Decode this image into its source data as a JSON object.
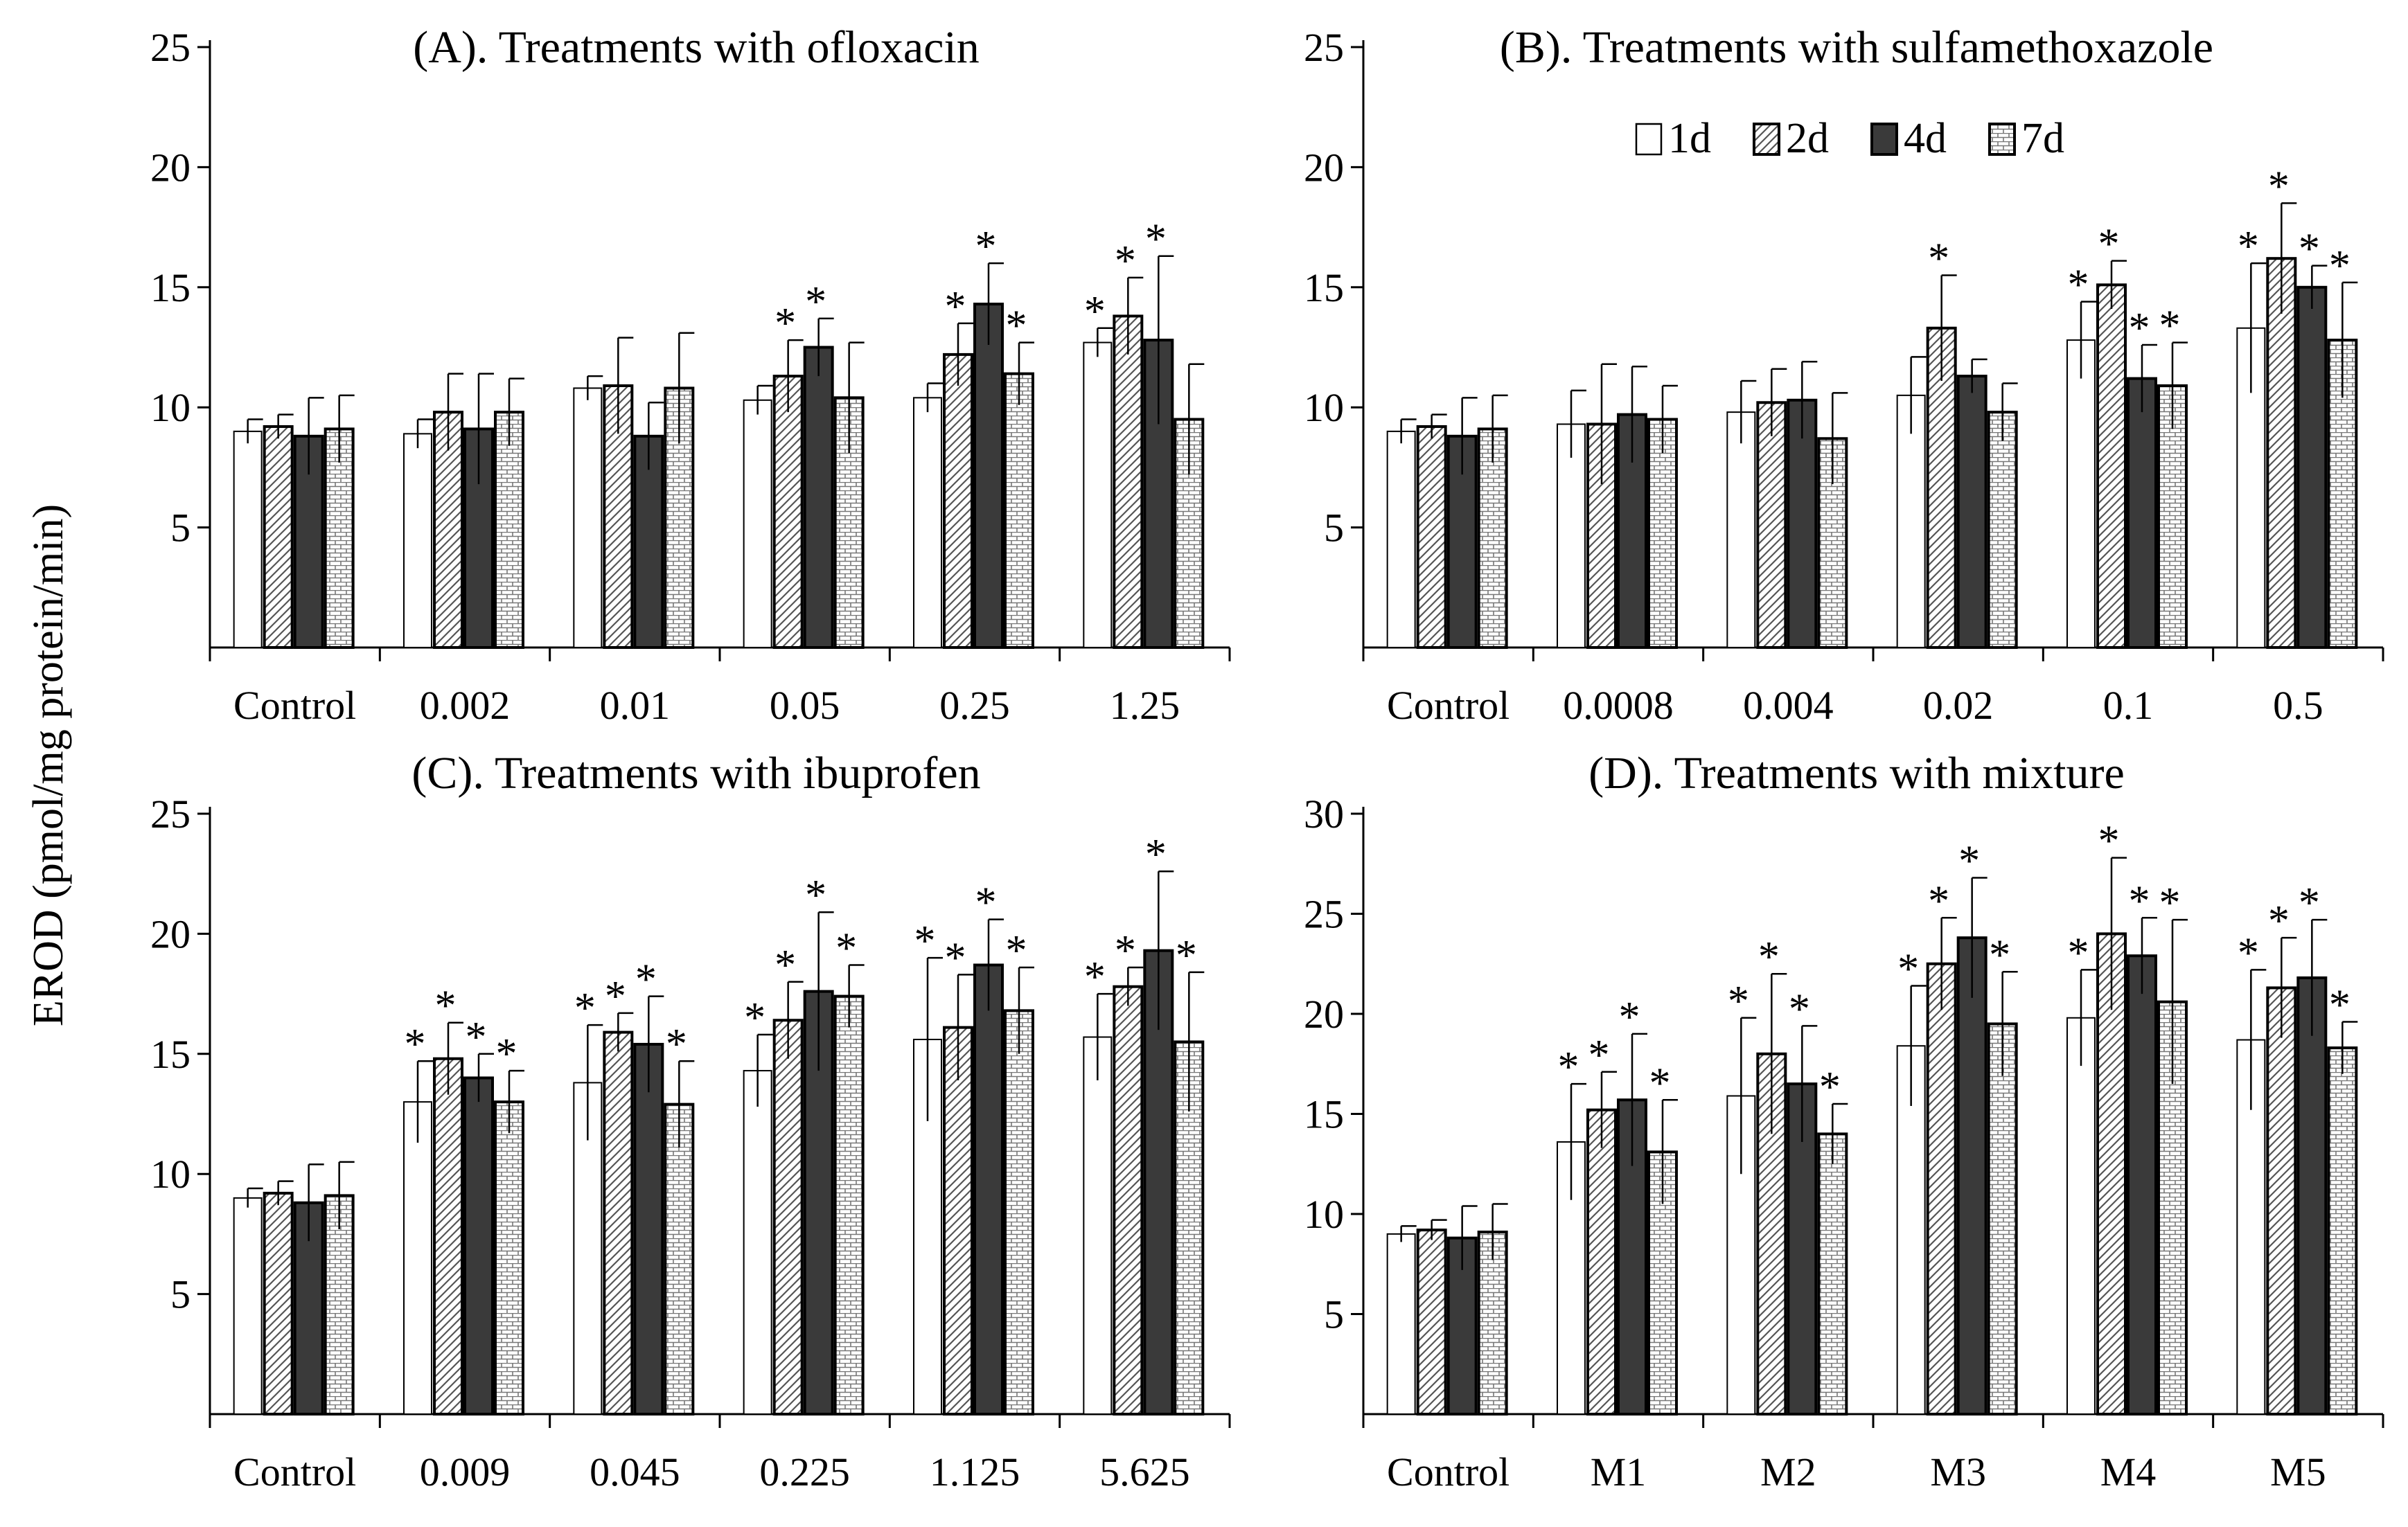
{
  "ylabel": "EROD (pmol/mg protein/min)",
  "legend": {
    "placement": "top-center of panel B",
    "items": [
      {
        "label": "1d",
        "fill": "#ffffff",
        "pattern": "plain"
      },
      {
        "label": "2d",
        "fill": "#ffffff",
        "pattern": "diagonal"
      },
      {
        "label": "4d",
        "fill": "#3a3a3a",
        "pattern": "solid"
      },
      {
        "label": "7d",
        "fill": "#ffffff",
        "pattern": "brick"
      }
    ]
  },
  "chart_data": [
    {
      "type": "bar",
      "title": "(A). Treatments with ofloxacin",
      "xlabel": "",
      "ylabel": "EROD (pmol/mg protein/min)",
      "ylim": [
        0,
        25
      ],
      "yticks": [
        5,
        10,
        15,
        20,
        25
      ],
      "categories": [
        "Control",
        "0.002",
        "0.01",
        "0.05",
        "0.25",
        "1.25"
      ],
      "series": [
        {
          "name": "1d",
          "values": [
            9.0,
            8.9,
            10.8,
            10.3,
            10.4,
            12.7
          ],
          "errors": [
            0.5,
            0.6,
            0.5,
            0.6,
            0.6,
            0.6
          ],
          "sig": [
            false,
            false,
            false,
            false,
            false,
            true
          ]
        },
        {
          "name": "2d",
          "values": [
            9.2,
            9.8,
            10.9,
            11.3,
            12.2,
            13.8
          ],
          "errors": [
            0.5,
            1.6,
            2.0,
            1.5,
            1.3,
            1.6
          ],
          "sig": [
            false,
            false,
            false,
            true,
            true,
            true
          ]
        },
        {
          "name": "4d",
          "values": [
            8.8,
            9.1,
            8.8,
            12.5,
            14.3,
            12.8
          ],
          "errors": [
            1.6,
            2.3,
            1.4,
            1.2,
            1.7,
            3.5
          ],
          "sig": [
            false,
            false,
            false,
            true,
            true,
            true
          ]
        },
        {
          "name": "7d",
          "values": [
            9.1,
            9.8,
            10.8,
            10.4,
            11.4,
            9.5
          ],
          "errors": [
            1.4,
            1.4,
            2.3,
            2.3,
            1.3,
            2.3
          ],
          "sig": [
            false,
            false,
            false,
            false,
            true,
            false
          ]
        }
      ]
    },
    {
      "type": "bar",
      "title": "(B). Treatments with sulfamethoxazole",
      "xlabel": "",
      "ylabel": "",
      "ylim": [
        0,
        25
      ],
      "yticks": [
        5,
        10,
        15,
        20,
        25
      ],
      "categories": [
        "Control",
        "0.0008",
        "0.004",
        "0.02",
        "0.1",
        "0.5"
      ],
      "series": [
        {
          "name": "1d",
          "values": [
            9.0,
            9.3,
            9.8,
            10.5,
            12.8,
            13.3
          ],
          "errors": [
            0.5,
            1.4,
            1.3,
            1.6,
            1.6,
            2.7
          ],
          "sig": [
            false,
            false,
            false,
            false,
            true,
            true
          ]
        },
        {
          "name": "2d",
          "values": [
            9.2,
            9.3,
            10.2,
            13.3,
            15.1,
            16.2
          ],
          "errors": [
            0.5,
            2.5,
            1.4,
            2.2,
            1.0,
            2.3
          ],
          "sig": [
            false,
            false,
            false,
            true,
            true,
            true
          ]
        },
        {
          "name": "4d",
          "values": [
            8.8,
            9.7,
            10.3,
            11.3,
            11.2,
            15.0
          ],
          "errors": [
            1.6,
            2.0,
            1.6,
            0.7,
            1.4,
            0.9
          ],
          "sig": [
            false,
            false,
            false,
            false,
            true,
            true
          ]
        },
        {
          "name": "7d",
          "values": [
            9.1,
            9.5,
            8.7,
            9.8,
            10.9,
            12.8
          ],
          "errors": [
            1.4,
            1.4,
            1.9,
            1.2,
            1.8,
            2.4
          ],
          "sig": [
            false,
            false,
            false,
            false,
            true,
            true
          ]
        }
      ]
    },
    {
      "type": "bar",
      "title": "(C). Treatments with ibuprofen",
      "xlabel": "",
      "ylabel": "EROD (pmol/mg protein/min)",
      "ylim": [
        0,
        25
      ],
      "yticks": [
        5,
        10,
        15,
        20,
        25
      ],
      "categories": [
        "Control",
        "0.009",
        "0.045",
        "0.225",
        "1.125",
        "5.625"
      ],
      "series": [
        {
          "name": "1d",
          "values": [
            9.0,
            13.0,
            13.8,
            14.3,
            15.6,
            15.7
          ],
          "errors": [
            0.4,
            1.7,
            2.4,
            1.5,
            3.4,
            1.8
          ],
          "sig": [
            false,
            true,
            true,
            true,
            true,
            true
          ]
        },
        {
          "name": "2d",
          "values": [
            9.2,
            14.8,
            15.9,
            16.4,
            16.1,
            17.8
          ],
          "errors": [
            0.5,
            1.5,
            0.8,
            1.6,
            2.2,
            0.8
          ],
          "sig": [
            false,
            true,
            true,
            true,
            true,
            true
          ]
        },
        {
          "name": "4d",
          "values": [
            8.8,
            14.0,
            15.4,
            17.6,
            18.7,
            19.3
          ],
          "errors": [
            1.6,
            1.0,
            2.0,
            3.3,
            1.9,
            3.3
          ],
          "sig": [
            false,
            true,
            true,
            true,
            true,
            true
          ]
        },
        {
          "name": "7d",
          "values": [
            9.1,
            13.0,
            12.9,
            17.4,
            16.8,
            15.5
          ],
          "errors": [
            1.4,
            1.3,
            1.8,
            1.3,
            1.8,
            2.9
          ],
          "sig": [
            false,
            true,
            true,
            true,
            true,
            true
          ]
        }
      ]
    },
    {
      "type": "bar",
      "title": "(D). Treatments with mixture",
      "xlabel": "",
      "ylabel": "",
      "ylim": [
        0,
        30
      ],
      "yticks": [
        5,
        10,
        15,
        20,
        25,
        30
      ],
      "categories": [
        "Control",
        "M1",
        "M2",
        "M3",
        "M4",
        "M5"
      ],
      "series": [
        {
          "name": "1d",
          "values": [
            9.0,
            13.6,
            15.9,
            18.4,
            19.8,
            18.7
          ],
          "errors": [
            0.4,
            2.9,
            3.9,
            3.0,
            2.4,
            3.5
          ],
          "sig": [
            false,
            true,
            true,
            true,
            true,
            true
          ]
        },
        {
          "name": "2d",
          "values": [
            9.2,
            15.2,
            18.0,
            22.5,
            24.0,
            21.3
          ],
          "errors": [
            0.5,
            1.9,
            4.0,
            2.3,
            3.8,
            2.5
          ],
          "sig": [
            false,
            true,
            true,
            true,
            true,
            true
          ]
        },
        {
          "name": "4d",
          "values": [
            8.8,
            15.7,
            16.5,
            23.8,
            22.9,
            21.8
          ],
          "errors": [
            1.6,
            3.3,
            2.9,
            3.0,
            1.9,
            2.9
          ],
          "sig": [
            false,
            true,
            true,
            true,
            true,
            true
          ]
        },
        {
          "name": "7d",
          "values": [
            9.1,
            13.1,
            14.0,
            19.5,
            20.6,
            18.3
          ],
          "errors": [
            1.4,
            2.6,
            1.5,
            2.6,
            4.1,
            1.3
          ],
          "sig": [
            false,
            true,
            true,
            true,
            true,
            true
          ]
        }
      ]
    }
  ]
}
